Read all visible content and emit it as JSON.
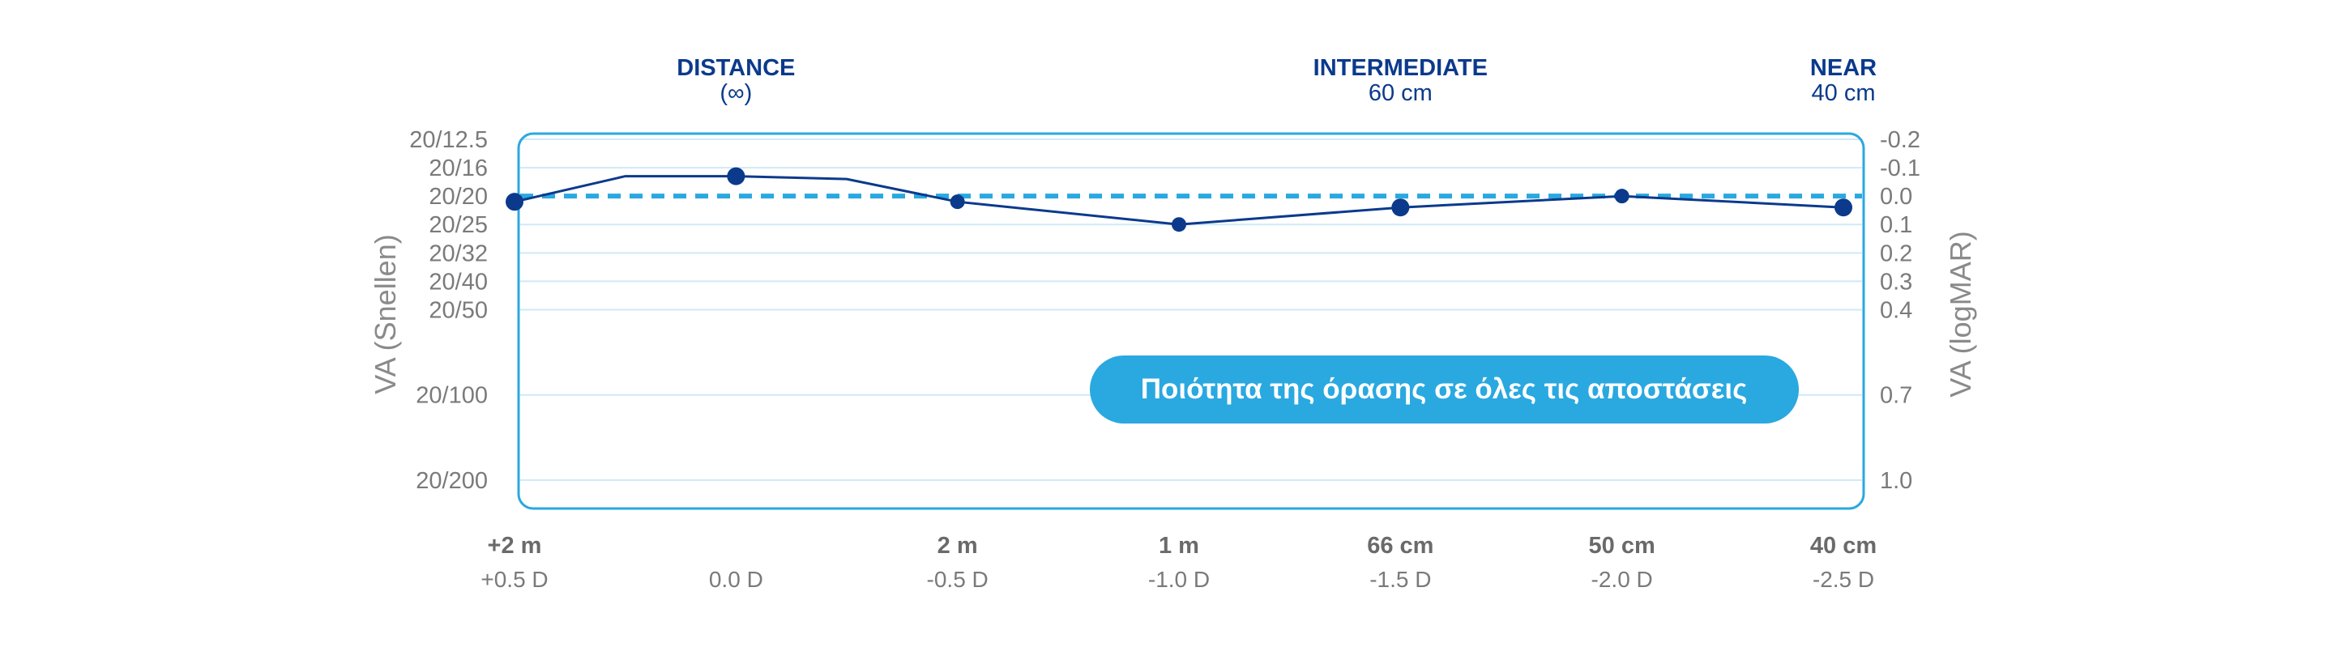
{
  "colors": {
    "frame": "#2aa8e0",
    "grid": "#cfe9f7",
    "series_line": "#0b3a8c",
    "reference_line": "#2aa8e0",
    "badge_bg": "#2aa8e0",
    "text_dark_blue": "#0b3a8c",
    "text_gray": "#7a7a7a"
  },
  "zones": [
    {
      "title": "DISTANCE",
      "subtitle": "(∞)"
    },
    {
      "title": "INTERMEDIATE",
      "subtitle": "60 cm"
    },
    {
      "title": "NEAR",
      "subtitle": "40 cm"
    }
  ],
  "badge": {
    "text": "Ποιότητα της όρασης σε όλες τις αποστάσεις"
  },
  "chart_data": {
    "type": "line",
    "xlabel": "",
    "ylabel_left": "VA (Snellen)",
    "ylabel_right": "VA (logMAR)",
    "y_scale": "logMAR (reversed)",
    "ylim_logmar": [
      1.1,
      -0.22
    ],
    "y_ticks": [
      {
        "logmar": -0.2,
        "snellen": "20/12.5",
        "logmar_label": "-0.2"
      },
      {
        "logmar": -0.1,
        "snellen": "20/16",
        "logmar_label": "-0.1"
      },
      {
        "logmar": 0.0,
        "snellen": "20/20",
        "logmar_label": "0.0"
      },
      {
        "logmar": 0.1,
        "snellen": "20/25",
        "logmar_label": "0.1"
      },
      {
        "logmar": 0.2,
        "snellen": "20/32",
        "logmar_label": "0.2"
      },
      {
        "logmar": 0.3,
        "snellen": "20/40",
        "logmar_label": "0.3"
      },
      {
        "logmar": 0.4,
        "snellen": "20/50",
        "logmar_label": "0.4"
      },
      {
        "logmar": 0.7,
        "snellen": "20/100",
        "logmar_label": "0.7"
      },
      {
        "logmar": 1.0,
        "snellen": "20/200",
        "logmar_label": "1.0"
      }
    ],
    "x_defocus_range": [
      0.5,
      -2.5
    ],
    "x_ticks": [
      {
        "defocus": 0.5,
        "distance": "+2 m",
        "diopter": "+0.5 D"
      },
      {
        "defocus": 0.0,
        "distance": "",
        "diopter": "0.0 D"
      },
      {
        "defocus": -0.5,
        "distance": "2 m",
        "diopter": "-0.5 D"
      },
      {
        "defocus": -1.0,
        "distance": "1 m",
        "diopter": "-1.0 D"
      },
      {
        "defocus": -1.5,
        "distance": "66 cm",
        "diopter": "-1.5 D"
      },
      {
        "defocus": -2.0,
        "distance": "50 cm",
        "diopter": "-2.0 D"
      },
      {
        "defocus": -2.5,
        "distance": "40 cm",
        "diopter": "-2.5 D"
      }
    ],
    "zone_defocus": [
      0.0,
      -1.5,
      -2.5
    ],
    "reference_line_logmar": 0.0,
    "series": [
      {
        "points": [
          {
            "defocus": 0.5,
            "logmar": 0.02,
            "marker": "large"
          },
          {
            "defocus": 0.25,
            "logmar": -0.07,
            "marker": "none"
          },
          {
            "defocus": 0.0,
            "logmar": -0.07,
            "marker": "large"
          },
          {
            "defocus": -0.25,
            "logmar": -0.06,
            "marker": "none"
          },
          {
            "defocus": -0.5,
            "logmar": 0.02,
            "marker": "small"
          },
          {
            "defocus": -1.0,
            "logmar": 0.1,
            "marker": "small"
          },
          {
            "defocus": -1.5,
            "logmar": 0.04,
            "marker": "large"
          },
          {
            "defocus": -2.0,
            "logmar": 0.0,
            "marker": "small"
          },
          {
            "defocus": -2.5,
            "logmar": 0.04,
            "marker": "large"
          }
        ]
      }
    ]
  }
}
